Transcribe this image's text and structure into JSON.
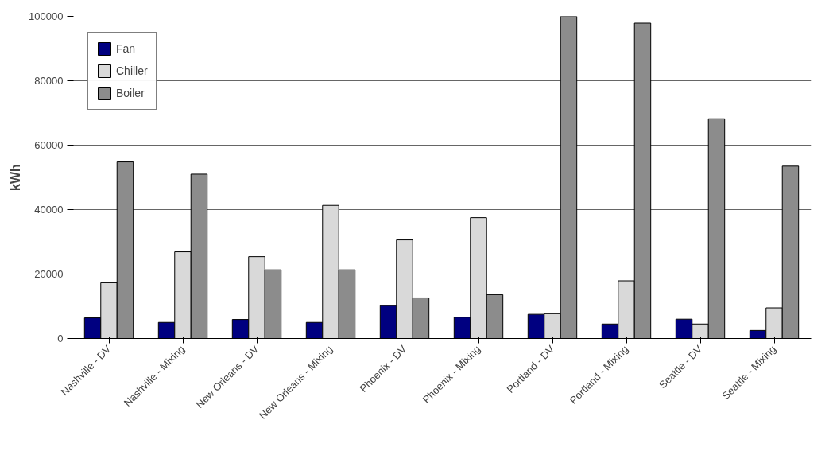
{
  "chart_data": {
    "type": "bar",
    "ylabel": "kWh",
    "categories": [
      "Nashville - DV",
      "Nashville - Mixing",
      "New Orleans - DV",
      "New Orleans - Mixing",
      "Phoenix - DV",
      "Phoenix - Mixing",
      "Portland - DV",
      "Portland - Mixing",
      "Seattle - DV",
      "Seattle - Mixing"
    ],
    "series": [
      {
        "name": "Fan",
        "color": "#000080",
        "values": [
          6400,
          5000,
          5900,
          5000,
          10200,
          6600,
          7500,
          4500,
          6000,
          2500
        ]
      },
      {
        "name": "Chiller",
        "color": "#d9d9d9",
        "values": [
          17300,
          26900,
          25400,
          41300,
          30600,
          37500,
          7700,
          17900,
          4500,
          9500
        ]
      },
      {
        "name": "Boiler",
        "color": "#8c8c8c",
        "values": [
          54800,
          51000,
          21300,
          21300,
          12600,
          13600,
          100000,
          97900,
          68200,
          53500
        ]
      }
    ],
    "ylim": [
      0,
      100000
    ],
    "yticks": [
      0,
      20000,
      40000,
      60000,
      80000,
      100000
    ],
    "grid": "y",
    "legend": "top left"
  }
}
